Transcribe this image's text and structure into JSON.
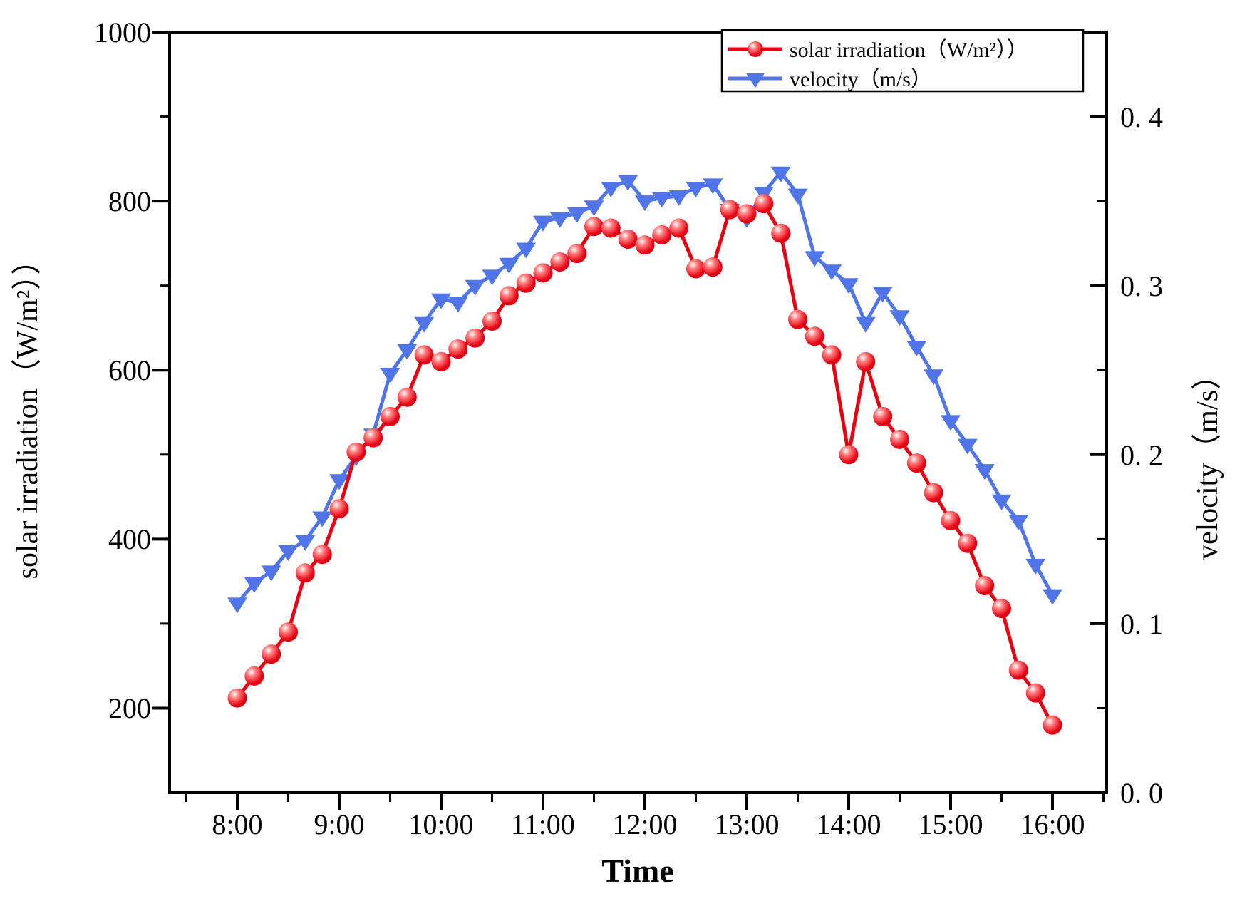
{
  "chart_data": {
    "type": "line",
    "title": "",
    "xlabel": "Time",
    "ylabel_left": "solar irradiation（W/m²））",
    "ylabel_right": "velocity（m/s）",
    "legend_position": "top-center",
    "grid": false,
    "x_axis": {
      "tick_labels": [
        "8:00",
        "9:00",
        "10:00",
        "11:00",
        "12:00",
        "13:00",
        "14:00",
        "15:00",
        "16:00"
      ],
      "major_tick_hours": [
        8,
        9,
        10,
        11,
        12,
        13,
        14,
        15,
        16
      ],
      "minor_tick_hours": [
        7.5,
        8.5,
        9.5,
        10.5,
        11.5,
        12.5,
        13.5,
        14.5,
        15.5,
        16.5
      ],
      "range_hours": [
        7.336,
        16.538
      ]
    },
    "left_axis": {
      "label": "solar irradiation（W/m²））",
      "min": 100,
      "max": 1000,
      "major_ticks": [
        200,
        400,
        600,
        800,
        1000
      ],
      "minor_ticks": [
        300,
        500,
        700,
        900
      ],
      "tick_labels": [
        "200",
        "400",
        "600",
        "800",
        "1000"
      ]
    },
    "right_axis": {
      "label": "velocity（m/s）",
      "min": 0.0,
      "max": 0.45,
      "major_ticks": [
        0.0,
        0.1,
        0.2,
        0.3,
        0.4
      ],
      "minor_ticks": [
        0.05,
        0.15,
        0.25,
        0.35,
        0.45
      ],
      "tick_labels": [
        "0. 0",
        "0. 1",
        "0. 2",
        "0. 3",
        "0. 4"
      ]
    },
    "x_times": [
      "8:00",
      "8:10",
      "8:20",
      "8:30",
      "8:40",
      "8:50",
      "9:00",
      "9:10",
      "9:20",
      "9:30",
      "9:40",
      "9:50",
      "10:00",
      "10:10",
      "10:20",
      "10:30",
      "10:40",
      "10:50",
      "11:00",
      "11:10",
      "11:20",
      "11:30",
      "11:40",
      "11:50",
      "12:00",
      "12:10",
      "12:20",
      "12:30",
      "12:40",
      "12:50",
      "13:00",
      "13:10",
      "13:20",
      "13:30",
      "13:40",
      "13:50",
      "14:00",
      "14:10",
      "14:20",
      "14:30",
      "14:40",
      "14:50",
      "15:00",
      "15:10",
      "15:20",
      "15:30",
      "15:40",
      "15:50",
      "16:00"
    ],
    "series": [
      {
        "name": "solar irradiation（W/m²））",
        "axis": "left",
        "color": "#e60012",
        "marker": "circle",
        "values": [
          212,
          238,
          264,
          290,
          360,
          382,
          436,
          503,
          520,
          545,
          568,
          618,
          610,
          625,
          638,
          658,
          688,
          703,
          715,
          728,
          738,
          770,
          768,
          755,
          748,
          760,
          768,
          720,
          722,
          790,
          785,
          797,
          762,
          660,
          640,
          618,
          500,
          610,
          545,
          518,
          490,
          455,
          422,
          395,
          345,
          318,
          245,
          218,
          180
        ]
      },
      {
        "name": "velocity（m/s）",
        "axis": "right",
        "color": "#4f75e8",
        "marker": "triangle-down",
        "values": [
          0.112,
          0.124,
          0.131,
          0.143,
          0.149,
          0.163,
          0.185,
          0.199,
          0.212,
          0.248,
          0.262,
          0.278,
          0.292,
          0.29,
          0.3,
          0.306,
          0.313,
          0.322,
          0.338,
          0.34,
          0.343,
          0.347,
          0.358,
          0.362,
          0.35,
          0.352,
          0.353,
          0.358,
          0.36,
          0.345,
          0.34,
          0.355,
          0.367,
          0.354,
          0.317,
          0.309,
          0.301,
          0.278,
          0.296,
          0.282,
          0.264,
          0.247,
          0.22,
          0.206,
          0.191,
          0.173,
          0.161,
          0.135,
          0.117
        ]
      }
    ]
  }
}
